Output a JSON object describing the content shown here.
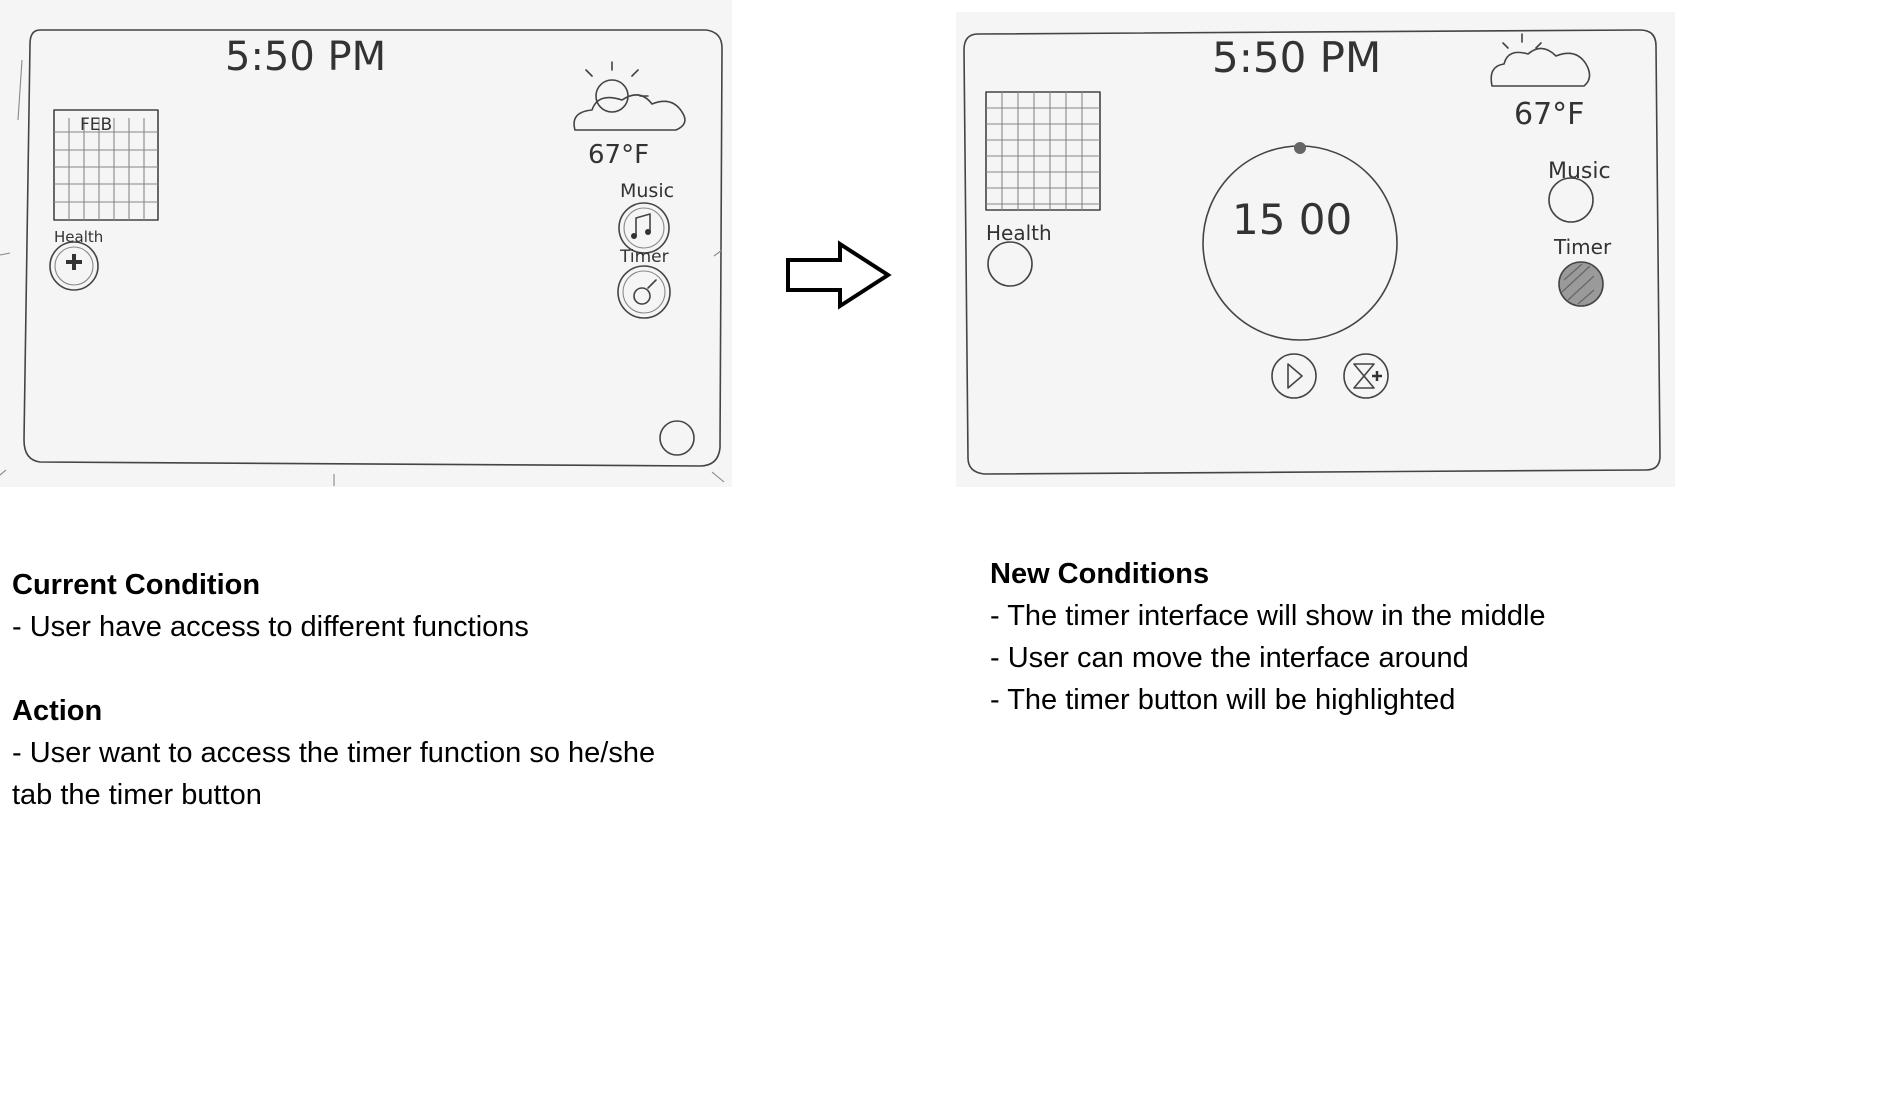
{
  "current_sketch": {
    "time": "5:50 PM",
    "calendar_month": "FEB",
    "temperature": "67°F",
    "health_label": "Health",
    "music_label": "Music",
    "timer_label": "Timer"
  },
  "new_sketch": {
    "time": "5:50 PM",
    "temperature": "67°F",
    "health_label": "Health",
    "music_label": "Music",
    "timer_label": "Timer",
    "timer_value": "15 00"
  },
  "current_condition": {
    "heading": "Current Condition",
    "lines": [
      "- User have access to different functions"
    ]
  },
  "action": {
    "heading": "Action",
    "lines": [
      "- User want to access the timer function so he/she",
      "tab the timer button"
    ]
  },
  "new_conditions": {
    "heading": "New Conditions",
    "lines": [
      "- The timer interface will show in the middle",
      "- User can move the interface around",
      "- The timer button will be highlighted"
    ]
  }
}
